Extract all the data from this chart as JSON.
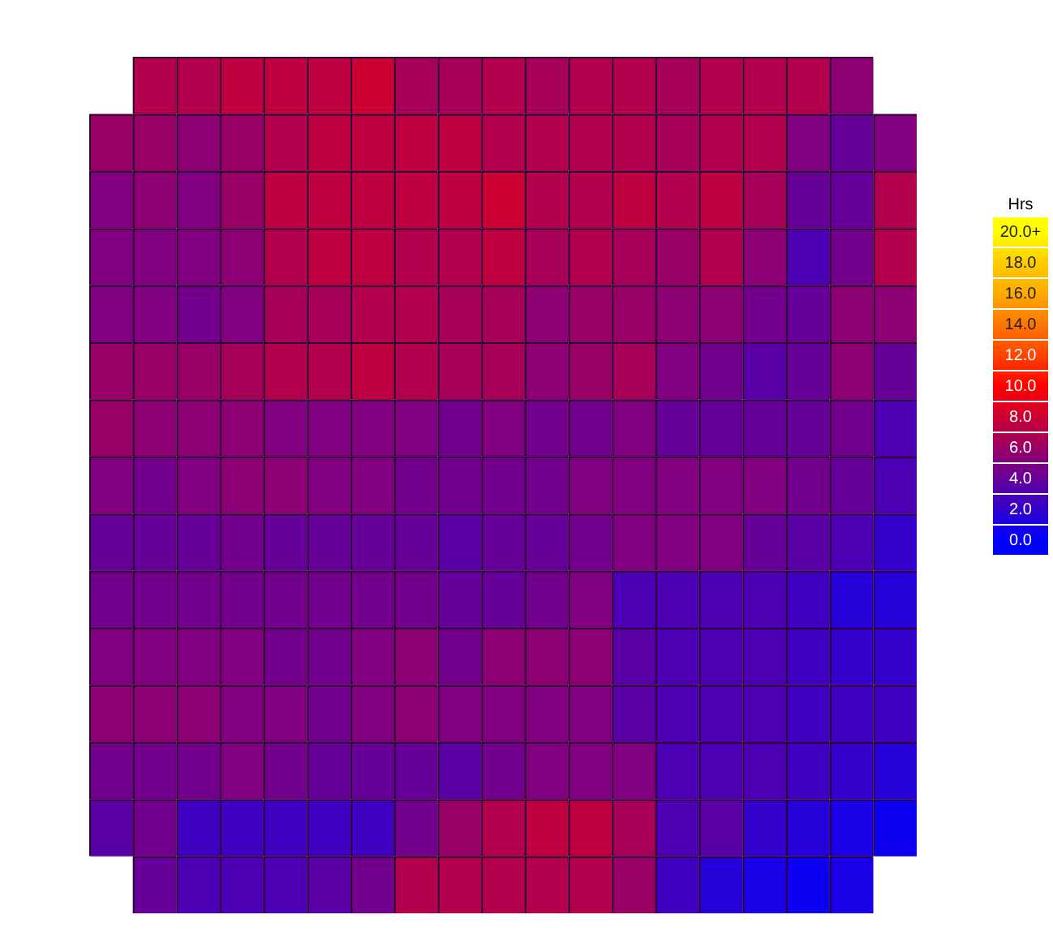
{
  "chart_data": {
    "type": "heatmap",
    "clabel": "Hrs",
    "categories": [
      null,
      null,
      null,
      null,
      null,
      null,
      null,
      null,
      null,
      null,
      null,
      null,
      null,
      null,
      null,
      null,
      null,
      null,
      null
    ],
    "y_categories": [
      null,
      null,
      null,
      null,
      null,
      null,
      null,
      null,
      null,
      null,
      null,
      null,
      null,
      null,
      null
    ],
    "cells": [
      [
        null,
        7,
        7,
        7.5,
        7.5,
        7.5,
        8,
        6.5,
        6.5,
        7,
        6.5,
        7,
        7,
        6.5,
        7,
        7,
        7,
        5.5,
        null
      ],
      [
        6,
        6,
        5.5,
        6,
        7,
        7.5,
        7.5,
        7.5,
        7.5,
        7,
        7,
        7,
        7,
        6.5,
        7,
        7,
        5,
        4,
        5
      ],
      [
        5,
        5.5,
        5,
        6,
        7.5,
        7.5,
        7.5,
        7.5,
        7.5,
        8,
        7,
        7,
        7.5,
        7,
        7.5,
        6.5,
        4,
        4,
        7
      ],
      [
        5,
        5,
        5,
        5.5,
        7,
        7.5,
        7.5,
        7,
        7,
        7.5,
        6.5,
        7,
        6.5,
        6,
        7,
        5.5,
        3,
        4.5,
        7
      ],
      [
        5,
        5,
        4.5,
        5,
        6.5,
        6.5,
        7,
        7,
        6.5,
        6.5,
        5.5,
        6,
        6,
        5.5,
        5.5,
        4.5,
        4,
        5.5,
        5.5
      ],
      [
        6,
        6,
        6,
        6.5,
        7,
        7,
        7.5,
        7,
        6.5,
        6.5,
        5.5,
        6,
        6.5,
        5,
        4.5,
        3.5,
        4,
        5.5,
        4
      ],
      [
        6,
        5.5,
        5.5,
        5.5,
        5,
        5,
        5,
        5,
        4.5,
        5,
        4.5,
        4.5,
        5,
        4,
        4,
        4,
        4,
        4.5,
        3
      ],
      [
        5,
        4.5,
        5,
        5.5,
        5.5,
        5,
        5,
        4.5,
        4.5,
        4.5,
        4.5,
        5,
        5,
        5,
        5,
        5,
        4.5,
        4,
        3
      ],
      [
        4,
        4,
        4,
        4.5,
        4,
        4,
        4,
        4,
        3.5,
        4,
        4,
        4.5,
        5,
        5,
        5,
        4,
        3.5,
        3,
        2
      ],
      [
        4.5,
        4.5,
        4.5,
        4.5,
        4.5,
        4.5,
        4.5,
        4.5,
        4,
        4,
        4.5,
        5,
        3,
        3,
        3,
        3,
        2.5,
        1.5,
        1.5
      ],
      [
        5,
        5,
        5,
        5,
        4.5,
        4.5,
        5,
        5.5,
        4.5,
        5.5,
        5.5,
        5.5,
        3.5,
        3,
        3,
        3,
        2.5,
        2,
        2
      ],
      [
        5.5,
        5.5,
        5.5,
        5,
        5,
        4.5,
        5,
        5.5,
        5,
        5,
        5,
        5,
        3.5,
        3,
        3,
        3,
        2.5,
        2.5,
        2.5
      ],
      [
        4.5,
        4.5,
        4.5,
        5,
        4.5,
        4,
        4,
        4,
        3.5,
        4.5,
        5,
        5,
        5,
        3,
        3,
        3,
        2.5,
        2,
        1.5
      ],
      [
        3.5,
        4.5,
        2.5,
        2.5,
        2.5,
        2.5,
        2.5,
        4.5,
        6,
        7,
        7.5,
        7.5,
        6.5,
        3,
        3.5,
        2,
        1.5,
        1,
        0.5
      ],
      [
        null,
        4,
        3,
        3,
        3,
        3.5,
        4.5,
        7,
        7,
        7,
        7,
        7,
        6,
        2.5,
        1.5,
        1,
        0.5,
        1,
        null
      ]
    ],
    "clim": [
      0,
      20
    ],
    "cticks": [
      {
        "value": 0,
        "label": "0.0"
      },
      {
        "value": 2,
        "label": "2.0"
      },
      {
        "value": 4,
        "label": "4.0"
      },
      {
        "value": 6,
        "label": "6.0"
      },
      {
        "value": 8,
        "label": "8.0"
      },
      {
        "value": 10,
        "label": "10.0"
      },
      {
        "value": 12,
        "label": "12.0"
      },
      {
        "value": 14,
        "label": "14.0"
      },
      {
        "value": 16,
        "label": "16.0"
      },
      {
        "value": 18,
        "label": "18.0"
      },
      {
        "value": 20,
        "label": "20.0+"
      }
    ]
  }
}
